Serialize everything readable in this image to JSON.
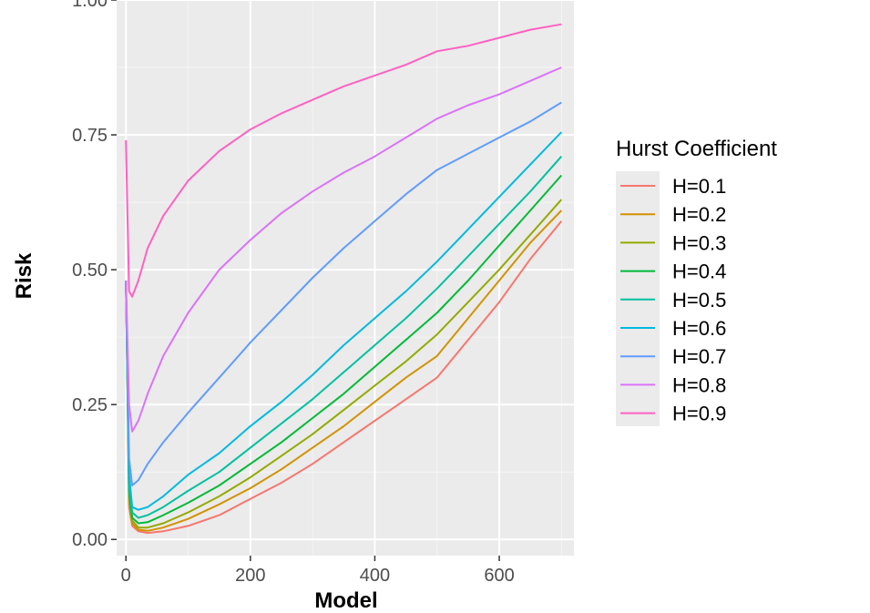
{
  "chart_data": {
    "type": "line",
    "title": "",
    "xlabel": "Model",
    "ylabel": "Risk",
    "xlim": [
      -15,
      720
    ],
    "ylim": [
      -0.03,
      1.0
    ],
    "xticks": [
      0,
      200,
      400,
      600
    ],
    "xtick_labels": [
      "0",
      "200",
      "400",
      "600"
    ],
    "yticks": [
      0,
      0.25,
      0.5,
      0.75,
      1.0
    ],
    "ytick_labels": [
      "0.00",
      "0.25",
      "0.50",
      "0.75",
      "1.00"
    ],
    "grid": true,
    "background": "#ebebeb",
    "legend": {
      "title": "Hurst Coefficient",
      "position": "right"
    },
    "series": [
      {
        "name": "H=0.1",
        "color": "#F8766D",
        "x": [
          0,
          5,
          10,
          20,
          35,
          60,
          100,
          150,
          200,
          250,
          300,
          350,
          400,
          450,
          500,
          550,
          600,
          650,
          700
        ],
        "y": [
          0.48,
          0.06,
          0.025,
          0.015,
          0.012,
          0.015,
          0.025,
          0.045,
          0.075,
          0.105,
          0.14,
          0.18,
          0.22,
          0.26,
          0.3,
          0.37,
          0.44,
          0.52,
          0.59
        ]
      },
      {
        "name": "H=0.2",
        "color": "#D39200",
        "x": [
          0,
          5,
          10,
          20,
          35,
          60,
          100,
          150,
          200,
          250,
          300,
          350,
          400,
          450,
          500,
          550,
          600,
          650,
          700
        ],
        "y": [
          0.48,
          0.07,
          0.03,
          0.018,
          0.016,
          0.022,
          0.038,
          0.065,
          0.095,
          0.13,
          0.17,
          0.21,
          0.255,
          0.3,
          0.34,
          0.41,
          0.48,
          0.55,
          0.61
        ]
      },
      {
        "name": "H=0.3",
        "color": "#93AA00",
        "x": [
          0,
          5,
          10,
          20,
          35,
          60,
          100,
          150,
          200,
          250,
          300,
          350,
          400,
          450,
          500,
          550,
          600,
          650,
          700
        ],
        "y": [
          0.48,
          0.08,
          0.035,
          0.022,
          0.022,
          0.03,
          0.05,
          0.08,
          0.115,
          0.155,
          0.195,
          0.24,
          0.285,
          0.33,
          0.38,
          0.44,
          0.5,
          0.565,
          0.63
        ]
      },
      {
        "name": "H=0.4",
        "color": "#00BA38",
        "x": [
          0,
          5,
          10,
          20,
          35,
          60,
          100,
          150,
          200,
          250,
          300,
          350,
          400,
          450,
          500,
          550,
          600,
          650,
          700
        ],
        "y": [
          0.48,
          0.09,
          0.04,
          0.03,
          0.032,
          0.045,
          0.068,
          0.1,
          0.14,
          0.18,
          0.225,
          0.27,
          0.32,
          0.37,
          0.42,
          0.48,
          0.545,
          0.61,
          0.675
        ]
      },
      {
        "name": "H=0.5",
        "color": "#00C19F",
        "x": [
          0,
          5,
          10,
          20,
          35,
          60,
          100,
          150,
          200,
          250,
          300,
          350,
          400,
          450,
          500,
          550,
          600,
          650,
          700
        ],
        "y": [
          0.48,
          0.1,
          0.05,
          0.04,
          0.045,
          0.06,
          0.09,
          0.125,
          0.17,
          0.215,
          0.26,
          0.31,
          0.36,
          0.41,
          0.465,
          0.525,
          0.585,
          0.645,
          0.71
        ]
      },
      {
        "name": "H=0.6",
        "color": "#00B9E3",
        "x": [
          0,
          5,
          10,
          20,
          35,
          60,
          100,
          150,
          200,
          250,
          300,
          350,
          400,
          450,
          500,
          550,
          600,
          650,
          700
        ],
        "y": [
          0.48,
          0.12,
          0.06,
          0.055,
          0.06,
          0.08,
          0.12,
          0.16,
          0.21,
          0.255,
          0.305,
          0.36,
          0.41,
          0.46,
          0.515,
          0.575,
          0.635,
          0.695,
          0.755
        ]
      },
      {
        "name": "H=0.7",
        "color": "#619CFF",
        "x": [
          0,
          5,
          10,
          20,
          35,
          60,
          100,
          150,
          200,
          250,
          300,
          350,
          400,
          450,
          500,
          550,
          600,
          650,
          700
        ],
        "y": [
          0.48,
          0.15,
          0.1,
          0.11,
          0.14,
          0.18,
          0.235,
          0.3,
          0.365,
          0.425,
          0.485,
          0.54,
          0.59,
          0.64,
          0.685,
          0.715,
          0.745,
          0.775,
          0.81
        ]
      },
      {
        "name": "H=0.8",
        "color": "#DB72FB",
        "x": [
          0,
          5,
          10,
          20,
          35,
          60,
          100,
          150,
          200,
          250,
          300,
          350,
          400,
          450,
          500,
          550,
          600,
          650,
          700
        ],
        "y": [
          0.48,
          0.25,
          0.2,
          0.22,
          0.27,
          0.34,
          0.42,
          0.5,
          0.555,
          0.605,
          0.645,
          0.68,
          0.71,
          0.745,
          0.78,
          0.805,
          0.825,
          0.85,
          0.875
        ]
      },
      {
        "name": "H=0.9",
        "color": "#FF61C3",
        "x": [
          0,
          5,
          10,
          20,
          35,
          60,
          100,
          150,
          200,
          250,
          300,
          350,
          400,
          450,
          500,
          550,
          600,
          650,
          700
        ],
        "y": [
          0.74,
          0.46,
          0.45,
          0.48,
          0.54,
          0.6,
          0.665,
          0.72,
          0.76,
          0.79,
          0.815,
          0.84,
          0.86,
          0.88,
          0.905,
          0.915,
          0.93,
          0.945,
          0.955
        ]
      }
    ]
  }
}
